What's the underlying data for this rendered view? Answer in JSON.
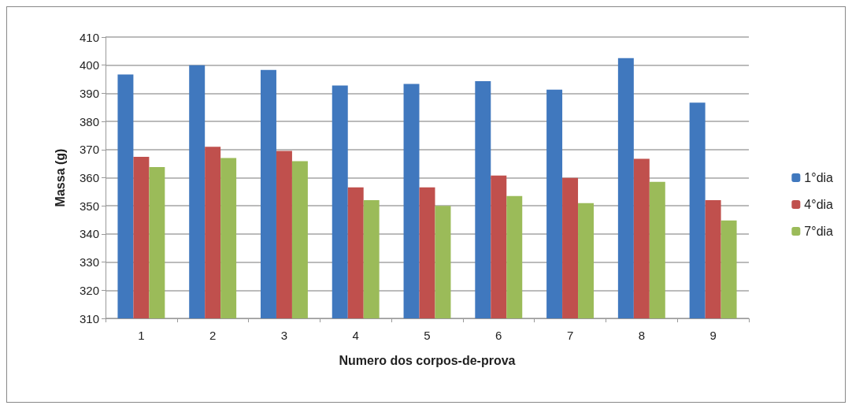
{
  "chart_data": {
    "type": "bar",
    "xlabel": "Numero dos corpos-de-prova",
    "ylabel": "Massa (g)",
    "categories": [
      "1",
      "2",
      "3",
      "4",
      "5",
      "6",
      "7",
      "8",
      "9"
    ],
    "series": [
      {
        "name": "1°dia",
        "color": "#4078be",
        "values": [
          396.7,
          400,
          398.3,
          392.8,
          393.3,
          394.3,
          391.3,
          402.5,
          386.7
        ]
      },
      {
        "name": "4°dia",
        "color": "#c0504d",
        "values": [
          367.4,
          371,
          369.5,
          356.6,
          356.6,
          360.8,
          359.9,
          366.7,
          352
        ]
      },
      {
        "name": "7°dia",
        "color": "#9bbb59",
        "values": [
          363.8,
          367,
          365.9,
          352,
          350,
          353.5,
          351,
          358.5,
          344.8
        ]
      }
    ],
    "ylim": [
      310,
      410
    ],
    "yticks": [
      310,
      320,
      330,
      340,
      350,
      360,
      370,
      380,
      390,
      400,
      410
    ],
    "grid": "y",
    "legend": "right"
  }
}
